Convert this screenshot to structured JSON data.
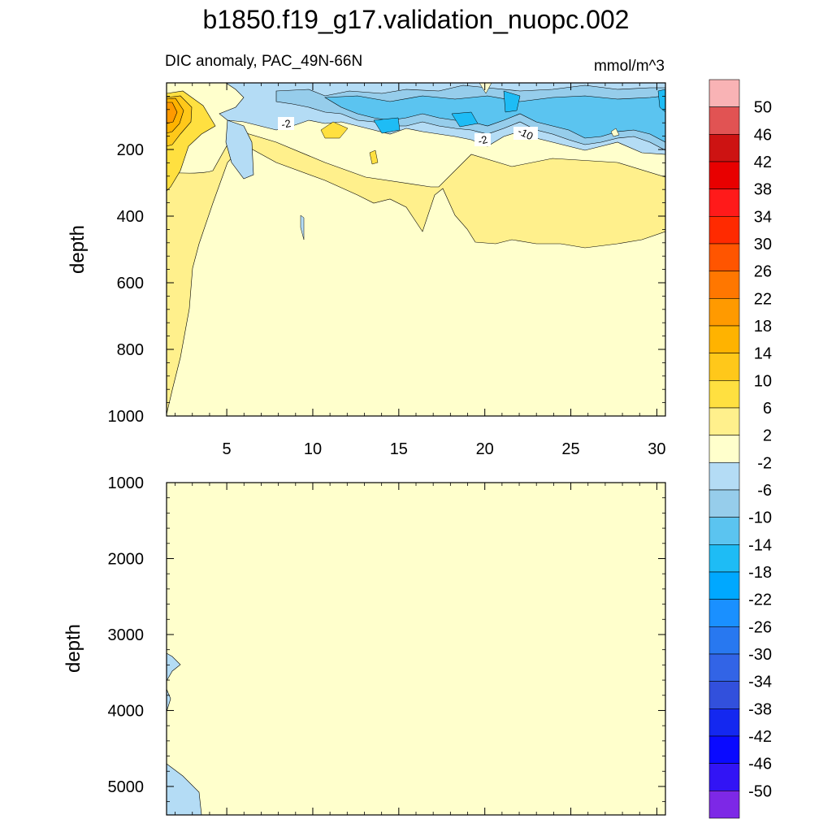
{
  "page": {
    "title": "b1850.f19_g17.validation_nuopc.002"
  },
  "chart_data": {
    "type": "contour",
    "title": "b1850.f19_g17.validation_nuopc.002",
    "subtitle": "DIC anomaly, PAC_49N-66N",
    "units": "mmol/m^3",
    "x": {
      "label": "",
      "ticks": [
        5,
        10,
        15,
        20,
        25,
        30
      ],
      "range": [
        1.5,
        30.5
      ]
    },
    "panels": [
      {
        "name": "upper",
        "ylabel": "depth",
        "yrange": [
          0,
          1000
        ],
        "yticks": [
          200,
          400,
          600,
          800,
          1000
        ],
        "show_x_tick_labels": true,
        "contour_labels": [
          "-2",
          "-2",
          "-10"
        ]
      },
      {
        "name": "lower",
        "ylabel": "depth",
        "yrange": [
          1000,
          5375
        ],
        "yticks": [
          1000,
          2000,
          3000,
          4000,
          5000
        ],
        "show_x_tick_labels": false,
        "contour_labels": []
      }
    ],
    "colorbar": {
      "labels": [
        "50",
        "46",
        "42",
        "38",
        "34",
        "30",
        "26",
        "22",
        "18",
        "14",
        "10",
        "6",
        "2",
        "-2",
        "-6",
        "-10",
        "-14",
        "-18",
        "-22",
        "-26",
        "-30",
        "-34",
        "-38",
        "-42",
        "-46",
        "-50"
      ],
      "colors": [
        "#f9b3b5",
        "#e15353",
        "#cd1312",
        "#e80000",
        "#ff1a1a",
        "#ff2a00",
        "#ff5500",
        "#ff7700",
        "#ff9a00",
        "#ffb300",
        "#ffc81a",
        "#ffe040",
        "#fff08c",
        "#ffffcc",
        "#b4dcf5",
        "#96cdeb",
        "#5bc4f0",
        "#1ebcf5",
        "#00a8ff",
        "#1a90ff",
        "#2878f0",
        "#3264e6",
        "#3250dc",
        "#1428f0",
        "#0a0aff",
        "#3214f5",
        "#7d28e6"
      ]
    }
  }
}
